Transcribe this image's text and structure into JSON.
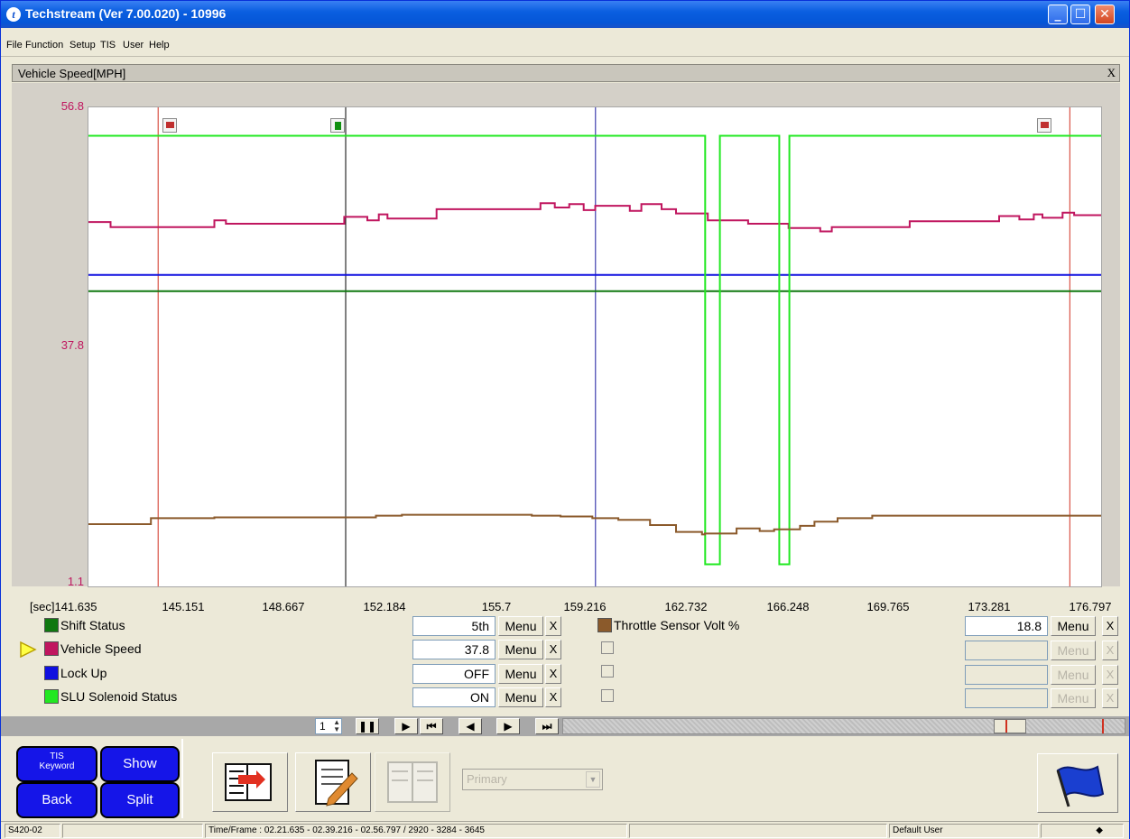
{
  "window": {
    "title": "Techstream (Ver 7.00.020) - 10996",
    "app_icon": "t"
  },
  "menubar": {
    "items": [
      "File",
      "Function",
      "Setup",
      "TIS",
      "User",
      "Help"
    ]
  },
  "panel": {
    "title": "Vehicle Speed[MPH]",
    "close": "X"
  },
  "chart_data": {
    "type": "line",
    "x_unit_label": "[sec]",
    "x_ticks": [
      "141.635",
      "145.151",
      "148.667",
      "152.184",
      "155.7",
      "159.216",
      "162.732",
      "166.248",
      "169.765",
      "173.281",
      "176.797"
    ],
    "y_ticks": [
      "56.8",
      "37.8",
      "1.1"
    ],
    "xlim": [
      141.635,
      176.797
    ],
    "ylim": [
      1.1,
      56.8
    ],
    "series": [
      {
        "name": "Vehicle Speed",
        "color": "#c0165f",
        "points": [
          [
            141.635,
            44.0
          ],
          [
            142.4,
            44.0
          ],
          [
            142.4,
            43.4
          ],
          [
            146.0,
            43.4
          ],
          [
            146.0,
            44.2
          ],
          [
            146.4,
            44.2
          ],
          [
            146.4,
            43.8
          ],
          [
            150.5,
            43.8
          ],
          [
            150.5,
            44.6
          ],
          [
            151.3,
            44.6
          ],
          [
            151.3,
            44.2
          ],
          [
            151.7,
            44.2
          ],
          [
            151.7,
            44.9
          ],
          [
            152.0,
            44.9
          ],
          [
            152.0,
            44.4
          ],
          [
            153.7,
            44.4
          ],
          [
            153.7,
            45.5
          ],
          [
            157.3,
            45.5
          ],
          [
            157.3,
            46.2
          ],
          [
            157.8,
            46.2
          ],
          [
            157.8,
            45.7
          ],
          [
            158.3,
            45.7
          ],
          [
            158.3,
            46.1
          ],
          [
            158.8,
            46.1
          ],
          [
            158.8,
            45.4
          ],
          [
            159.2,
            45.4
          ],
          [
            159.2,
            45.9
          ],
          [
            160.4,
            45.9
          ],
          [
            160.4,
            45.3
          ],
          [
            160.8,
            45.3
          ],
          [
            160.8,
            46.1
          ],
          [
            161.5,
            46.1
          ],
          [
            161.5,
            45.5
          ],
          [
            162.0,
            45.5
          ],
          [
            162.0,
            45.0
          ],
          [
            163.1,
            45.0
          ],
          [
            163.1,
            44.2
          ],
          [
            164.5,
            44.2
          ],
          [
            164.5,
            43.8
          ],
          [
            165.9,
            43.8
          ],
          [
            165.9,
            43.3
          ],
          [
            167.0,
            43.3
          ],
          [
            167.0,
            42.9
          ],
          [
            167.4,
            42.9
          ],
          [
            167.4,
            43.4
          ],
          [
            170.1,
            43.4
          ],
          [
            170.1,
            44.1
          ],
          [
            173.2,
            44.1
          ],
          [
            173.2,
            44.7
          ],
          [
            173.9,
            44.7
          ],
          [
            173.9,
            44.3
          ],
          [
            174.4,
            44.3
          ],
          [
            174.4,
            44.9
          ],
          [
            174.7,
            44.9
          ],
          [
            174.7,
            44.5
          ],
          [
            175.4,
            44.5
          ],
          [
            175.4,
            45.1
          ],
          [
            175.8,
            45.1
          ],
          [
            175.8,
            44.8
          ],
          [
            176.797,
            44.8
          ]
        ]
      },
      {
        "name": "Lock Up",
        "color": "#1010e0",
        "points": [
          [
            141.635,
            37.8
          ],
          [
            176.797,
            37.8
          ]
        ]
      },
      {
        "name": "Shift Status",
        "color": "#107810",
        "points": [
          [
            141.635,
            35.9
          ],
          [
            176.797,
            35.9
          ]
        ]
      },
      {
        "name": "SLU Solenoid Status",
        "color": "#22e822",
        "points": [
          [
            141.635,
            54.1
          ],
          [
            163.01,
            54.1
          ],
          [
            163.01,
            3.9
          ],
          [
            163.52,
            3.9
          ],
          [
            163.52,
            54.1
          ],
          [
            165.58,
            54.1
          ],
          [
            165.58,
            3.9
          ],
          [
            165.93,
            3.9
          ],
          [
            165.93,
            54.1
          ],
          [
            176.797,
            54.1
          ]
        ]
      },
      {
        "name": "Throttle Sensor Volt %",
        "color": "#8b5a2b",
        "points": [
          [
            141.635,
            8.6
          ],
          [
            143.8,
            8.6
          ],
          [
            143.8,
            9.3
          ],
          [
            146.0,
            9.3
          ],
          [
            146.0,
            9.4
          ],
          [
            151.6,
            9.4
          ],
          [
            151.6,
            9.6
          ],
          [
            152.5,
            9.6
          ],
          [
            152.5,
            9.7
          ],
          [
            157.0,
            9.7
          ],
          [
            157.0,
            9.6
          ],
          [
            158.0,
            9.6
          ],
          [
            158.0,
            9.5
          ],
          [
            159.1,
            9.5
          ],
          [
            159.1,
            9.3
          ],
          [
            160.0,
            9.3
          ],
          [
            160.0,
            9.1
          ],
          [
            161.1,
            9.1
          ],
          [
            161.1,
            8.5
          ],
          [
            162.0,
            8.5
          ],
          [
            162.0,
            7.7
          ],
          [
            162.9,
            7.7
          ],
          [
            162.9,
            7.4
          ],
          [
            163.0,
            7.4
          ],
          [
            163.0,
            7.5
          ],
          [
            164.1,
            7.5
          ],
          [
            164.1,
            8.1
          ],
          [
            164.9,
            8.1
          ],
          [
            164.9,
            7.8
          ],
          [
            165.4,
            7.8
          ],
          [
            165.4,
            8.0
          ],
          [
            166.3,
            8.0
          ],
          [
            166.3,
            8.4
          ],
          [
            166.8,
            8.4
          ],
          [
            166.8,
            8.9
          ],
          [
            167.6,
            8.9
          ],
          [
            167.6,
            9.3
          ],
          [
            168.8,
            9.3
          ],
          [
            168.8,
            9.6
          ],
          [
            176.797,
            9.6
          ]
        ]
      }
    ],
    "cursors": [
      {
        "x": 144.05,
        "color": "#d03020",
        "marker": "red-flag"
      },
      {
        "x": 150.55,
        "color": "#000000",
        "marker": "green-arrow"
      },
      {
        "x": 159.21,
        "color": "#1a1aa0",
        "marker": "none"
      },
      {
        "x": 175.65,
        "color": "#d03020",
        "marker": "blue-flag"
      }
    ]
  },
  "legend": {
    "left": [
      {
        "name": "Shift Status",
        "color": "#107810",
        "value": "5th",
        "menu": "Menu",
        "x": "X",
        "selected": false
      },
      {
        "name": "Vehicle Speed",
        "color": "#c0165f",
        "value": "37.8",
        "menu": "Menu",
        "x": "X",
        "selected": true
      },
      {
        "name": "Lock Up",
        "color": "#1010e0",
        "value": "OFF",
        "menu": "Menu",
        "x": "X",
        "selected": false
      },
      {
        "name": "SLU Solenoid Status",
        "color": "#22e822",
        "value": "ON",
        "menu": "Menu",
        "x": "X",
        "selected": false
      }
    ],
    "right": [
      {
        "name": "Throttle Sensor Volt %",
        "color": "#8b5a2b",
        "value": "18.8",
        "menu": "Menu",
        "x": "X",
        "enabled": true
      },
      {
        "name": "",
        "value": "",
        "menu": "Menu",
        "x": "X",
        "enabled": false
      },
      {
        "name": "",
        "value": "",
        "menu": "Menu",
        "x": "X",
        "enabled": false
      },
      {
        "name": "",
        "value": "",
        "menu": "Menu",
        "x": "X",
        "enabled": false
      }
    ]
  },
  "playback": {
    "frame_step": "1"
  },
  "side_buttons": {
    "tis_keyword_line1": "TIS",
    "tis_keyword_line2": "Keyword",
    "show": "Show",
    "back": "Back",
    "split": "Split"
  },
  "toolbar": {
    "primary_select": "Primary"
  },
  "statusbar": {
    "code": "S420-02",
    "time_frame": "Time/Frame : 02.21.635 - 02.39.216 - 02.56.797 / 2920 - 3284 - 3645",
    "user": "Default User"
  }
}
